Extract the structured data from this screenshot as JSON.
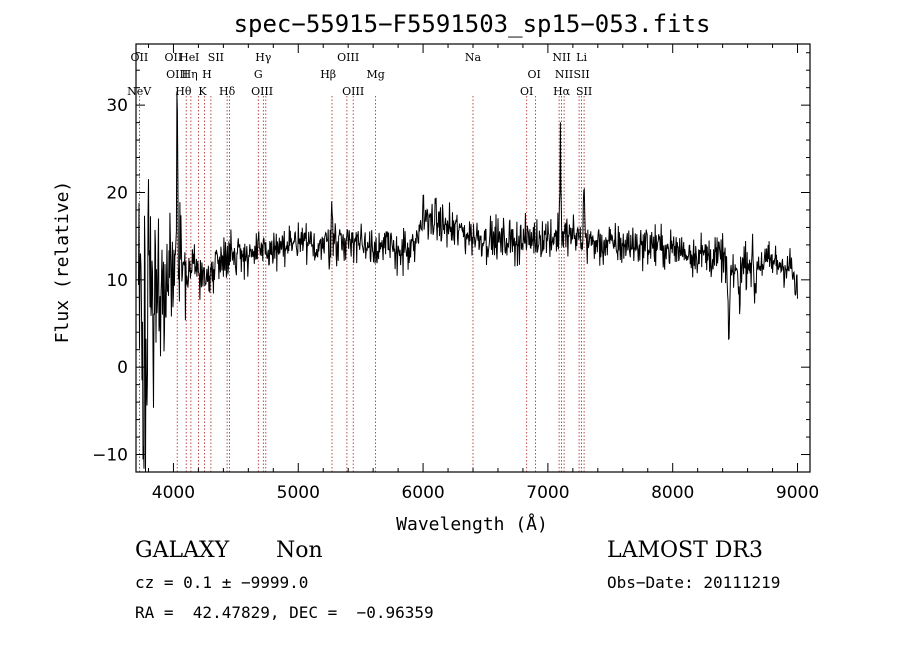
{
  "chart_data": {
    "type": "line",
    "title": "spec−55915−F5591503_sp15−053.fits",
    "xlabel": "Wavelength (Å)",
    "ylabel": "Flux (relative)",
    "xlim": [
      3700,
      9100
    ],
    "ylim": [
      -12,
      37
    ],
    "x_ticks": [
      4000,
      5000,
      6000,
      7000,
      8000,
      9000
    ],
    "y_ticks": [
      -10,
      0,
      10,
      20,
      30
    ],
    "line_color": "#000000",
    "marker_color": "#aa2222",
    "spectral_lines": [
      {
        "label": "NeV",
        "x": 3726,
        "row": 3
      },
      {
        "label": "OII",
        "x": 3727,
        "row": 1
      },
      {
        "label": "OII",
        "x": 4000,
        "row": 1
      },
      {
        "label": "OIII",
        "x": 4030,
        "row": 2
      },
      {
        "label": "Hθ",
        "x": 4080,
        "row": 3
      },
      {
        "label": "He",
        "x": 4110,
        "row": 1
      },
      {
        "label": "Hη",
        "x": 4130,
        "row": 2
      },
      {
        "label": "I",
        "x": 4190,
        "row": 1
      },
      {
        "label": "K",
        "x": 4233,
        "row": 3
      },
      {
        "label": "H",
        "x": 4268,
        "row": 2
      },
      {
        "label": "SII",
        "x": 4340,
        "row": 1
      },
      {
        "label": "Hδ",
        "x": 4430,
        "row": 3
      },
      {
        "label": "Hγ",
        "x": 4720,
        "row": 1
      },
      {
        "label": "G",
        "x": 4680,
        "row": 2
      },
      {
        "label": "OIII",
        "x": 4710,
        "row": 3
      },
      {
        "label": "Hβ",
        "x": 5240,
        "row": 2
      },
      {
        "label": "OIII",
        "x": 5400,
        "row": 1
      },
      {
        "label": "OIII",
        "x": 5440,
        "row": 3
      },
      {
        "label": "Mg",
        "x": 5620,
        "row": 2
      },
      {
        "label": "Na",
        "x": 6400,
        "row": 1
      },
      {
        "label": "OI",
        "x": 6890,
        "row": 2
      },
      {
        "label": "OI",
        "x": 6830,
        "row": 3
      },
      {
        "label": "NII",
        "x": 7110,
        "row": 1
      },
      {
        "label": "NII",
        "x": 7130,
        "row": 2
      },
      {
        "label": "Hα",
        "x": 7110,
        "row": 3
      },
      {
        "label": "Li",
        "x": 7270,
        "row": 1
      },
      {
        "label": "SII",
        "x": 7270,
        "row": 2
      },
      {
        "label": "SII",
        "x": 7290,
        "row": 3
      }
    ],
    "marker_lines_x": [
      3727,
      4030,
      4102,
      4140,
      4200,
      4250,
      4300,
      4430,
      4450,
      4680,
      4720,
      4740,
      5270,
      5390,
      5440,
      5620,
      6400,
      6830,
      6900,
      7090,
      7110,
      7130,
      7250,
      7270,
      7290
    ],
    "spectrum_anchors": [
      [
        3720,
        5
      ],
      [
        3760,
        8
      ],
      [
        3800,
        6
      ],
      [
        3850,
        9
      ],
      [
        3900,
        8
      ],
      [
        3950,
        10
      ],
      [
        4000,
        10
      ],
      [
        4050,
        11
      ],
      [
        4100,
        11
      ],
      [
        4150,
        12
      ],
      [
        4200,
        11
      ],
      [
        4250,
        10
      ],
      [
        4300,
        11
      ],
      [
        4400,
        13
      ],
      [
        4500,
        13
      ],
      [
        4600,
        13
      ],
      [
        4700,
        13
      ],
      [
        4800,
        13.5
      ],
      [
        5000,
        14
      ],
      [
        5200,
        14
      ],
      [
        5400,
        14.5
      ],
      [
        5600,
        14
      ],
      [
        5800,
        13.5
      ],
      [
        5900,
        13
      ],
      [
        5950,
        14
      ],
      [
        6000,
        17.5
      ],
      [
        6200,
        16
      ],
      [
        6400,
        15
      ],
      [
        6600,
        14.5
      ],
      [
        6800,
        14.5
      ],
      [
        7000,
        15
      ],
      [
        7100,
        15
      ],
      [
        7200,
        15
      ],
      [
        7400,
        14
      ],
      [
        7600,
        14
      ],
      [
        7800,
        14
      ],
      [
        8000,
        13.5
      ],
      [
        8200,
        13
      ],
      [
        8400,
        12.5
      ],
      [
        8500,
        11
      ],
      [
        8600,
        12
      ],
      [
        8800,
        12
      ],
      [
        8950,
        11.5
      ],
      [
        9000,
        8
      ]
    ],
    "spectrum_features": [
      {
        "x": 4030,
        "height": 25,
        "width": 8
      },
      {
        "x": 5270,
        "height": 8,
        "width": 10
      },
      {
        "x": 7100,
        "height": 12,
        "width": 12
      },
      {
        "x": 7290,
        "height": 9,
        "width": 10
      },
      {
        "x": 8450,
        "height": -10,
        "width": 20
      },
      {
        "x": 8530,
        "height": -6,
        "width": 15
      },
      {
        "x": 8660,
        "height": -5,
        "width": 15
      }
    ],
    "noise_blue_end": 18,
    "noise_red": 1.7
  },
  "info": {
    "object_class": "GALAXY",
    "subclass": "Non",
    "survey": "LAMOST DR3",
    "cz": "cz = 0.1 ± −9999.0",
    "obs_date": "Obs−Date: 20111219",
    "radec": "RA =  42.47829, DEC =  −0.96359"
  }
}
